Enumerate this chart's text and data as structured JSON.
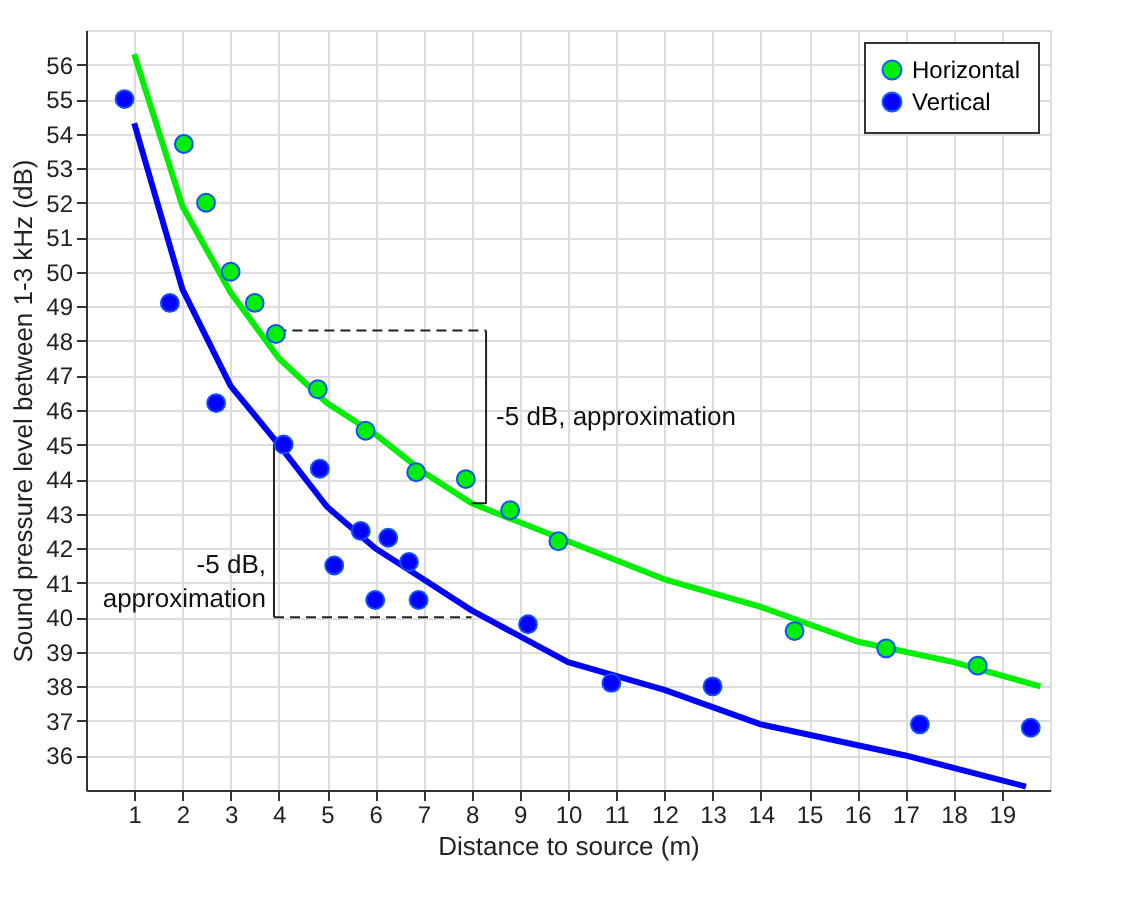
{
  "chart_data": {
    "type": "scatter",
    "xlabel": "Distance to source (m)",
    "ylabel": "Sound pressure level between 1-3 kHz (dB)",
    "xlim": [
      0,
      20
    ],
    "xticks": [
      1,
      2,
      3,
      4,
      5,
      6,
      7,
      8,
      9,
      10,
      11,
      12,
      13,
      14,
      15,
      16,
      17,
      18,
      19
    ],
    "ylim": [
      35,
      57
    ],
    "yticks": [
      36,
      37,
      38,
      39,
      40,
      41,
      42,
      43,
      44,
      45,
      46,
      47,
      48,
      49,
      50,
      51,
      52,
      53,
      54,
      55,
      56
    ],
    "grid": true,
    "legend": "top right",
    "marker": "circle",
    "annotations": [
      {
        "text": "-5 dB, approximation",
        "x": 8.3,
        "y": 45.8
      },
      {
        "text": "-5 dB,\napproximation",
        "x": 3.9,
        "y": 41.5
      }
    ],
    "series": [
      {
        "name": "Horizontal",
        "color": "#00ee00",
        "x": [
          2.03,
          2.49,
          3.0,
          3.5,
          3.94,
          4.81,
          5.8,
          6.85,
          7.88,
          8.8,
          9.8,
          14.7,
          16.6,
          18.5
        ],
        "values": [
          53.7,
          52.0,
          50.0,
          49.1,
          48.2,
          46.6,
          45.4,
          44.2,
          44.0,
          43.1,
          42.2,
          39.6,
          39.1,
          38.6
        ]
      },
      {
        "name": "Vertical",
        "color": "#0000ff",
        "x": [
          0.8,
          1.74,
          2.7,
          4.1,
          4.85,
          5.15,
          5.7,
          6.0,
          6.27,
          6.7,
          6.9,
          9.17,
          10.9,
          13.0,
          17.3,
          19.6
        ],
        "values": [
          55.0,
          49.1,
          46.2,
          45.0,
          44.3,
          41.5,
          42.5,
          40.5,
          42.3,
          41.6,
          40.5,
          39.8,
          38.1,
          38.0,
          36.9,
          36.8
        ]
      },
      {
        "type": "line",
        "color": "#00ee00",
        "marker": "none",
        "line_style": "solid",
        "x": [
          1,
          2,
          3,
          4,
          5,
          6,
          7,
          8,
          10,
          12,
          14,
          16,
          18,
          19.8
        ],
        "values": [
          56.3,
          51.9,
          49.4,
          47.5,
          46.2,
          45.3,
          44.2,
          43.3,
          42.2,
          41.1,
          40.3,
          39.3,
          38.7,
          38.0
        ]
      },
      {
        "type": "line",
        "color": "#0000ff",
        "marker": "none",
        "line_style": "solid",
        "x": [
          1,
          2,
          3,
          4,
          5,
          6,
          7,
          8,
          10,
          12,
          14,
          17,
          19.5
        ],
        "values": [
          54.3,
          49.5,
          46.7,
          45.0,
          43.2,
          42.0,
          41.1,
          40.2,
          38.7,
          37.9,
          36.9,
          36.0,
          35.1
        ]
      },
      {
        "type": "line",
        "color": "#222222",
        "marker": "none",
        "line_style": "dashed",
        "x": [
          3.95,
          8.3
        ],
        "values": [
          48.3,
          48.3
        ]
      },
      {
        "type": "line",
        "color": "#222222",
        "marker": "none",
        "line_style": "solid",
        "x": [
          8.3,
          8.3,
          8.0
        ],
        "values": [
          48.3,
          43.3,
          43.3
        ]
      },
      {
        "type": "line",
        "color": "#222222",
        "marker": "none",
        "line_style": "solid",
        "x": [
          4.1,
          3.9,
          3.9
        ],
        "values": [
          45.0,
          45.0,
          40.0
        ]
      },
      {
        "type": "line",
        "color": "#222222",
        "marker": "none",
        "line_style": "dashed",
        "x": [
          3.9,
          8.0
        ],
        "values": [
          40.0,
          40.0
        ]
      }
    ]
  }
}
